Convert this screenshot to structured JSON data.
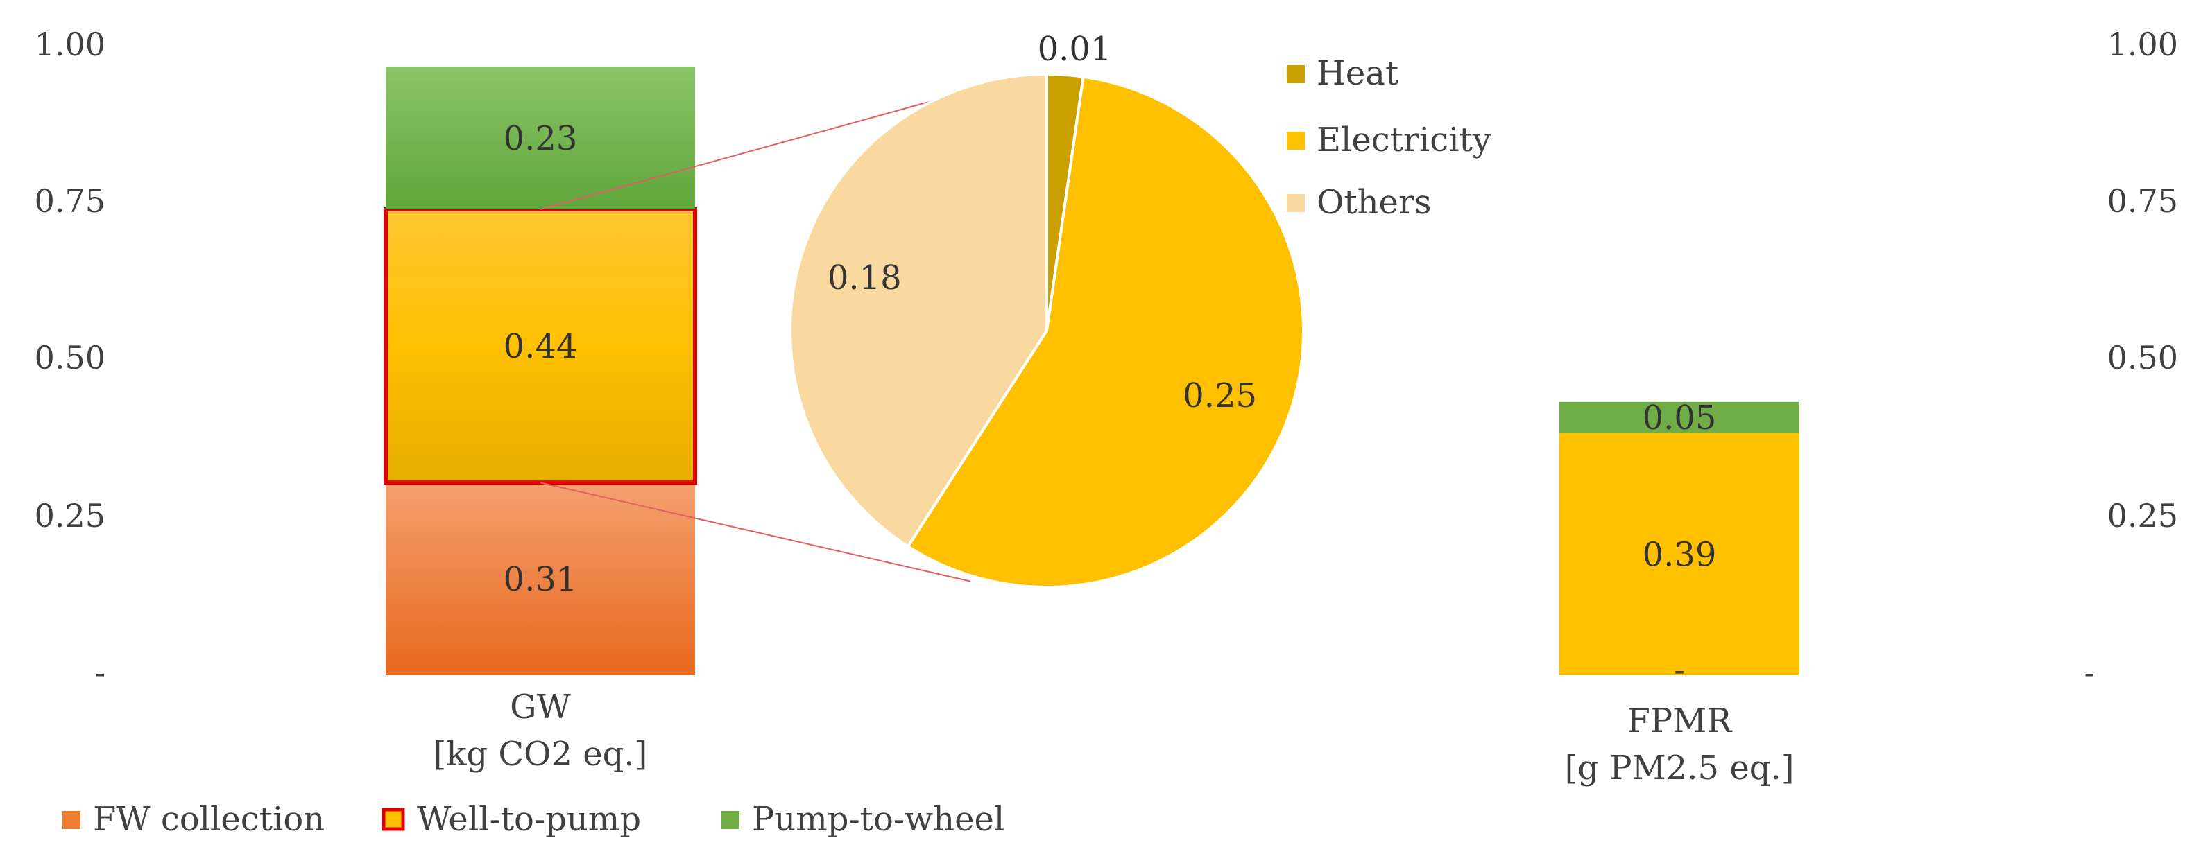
{
  "chart_data": {
    "type": "bar",
    "stacked": true,
    "ylim": [
      0,
      1
    ],
    "y_ticks": [
      {
        "value": 0,
        "label": "-"
      },
      {
        "value": 0.25,
        "label": "0.25"
      },
      {
        "value": 0.5,
        "label": "0.50"
      },
      {
        "value": 0.75,
        "label": "0.75"
      },
      {
        "value": 1.0,
        "label": "1.00"
      }
    ],
    "categories": [
      {
        "name": "GW",
        "unit": "[kg CO2 eq.]",
        "zero_tick": ""
      },
      {
        "name": "FPMR",
        "unit": "[g PM2.5 eq.]",
        "zero_tick": "-"
      }
    ],
    "series": [
      {
        "name": "FW collection",
        "color": "#ED7D31",
        "values": [
          0.31,
          0
        ],
        "labels": [
          "0.31",
          ""
        ]
      },
      {
        "name": "Well-to-pump",
        "color": "#FFC000",
        "highlight": "#E00000",
        "values": [
          0.44,
          0.39
        ],
        "labels": [
          "0.44",
          "0.39"
        ]
      },
      {
        "name": "Pump-to-wheel",
        "color": "#70AD47",
        "values": [
          0.23,
          0.05
        ],
        "labels": [
          "0.23",
          "0.05"
        ]
      }
    ],
    "inset_pie": {
      "breakdown_of": "Well-to-pump (GW)",
      "slices": [
        {
          "name": "Heat",
          "value": 0.01,
          "label": "0.01",
          "color": "#C9A000"
        },
        {
          "name": "Electricity",
          "value": 0.25,
          "label": "0.25",
          "color": "#FFC000"
        },
        {
          "name": "Others",
          "value": 0.18,
          "label": "0.18",
          "color": "#F9D9A0"
        }
      ]
    },
    "legend": [
      {
        "name": "FW collection",
        "color": "#ED7D31"
      },
      {
        "name": "Well-to-pump",
        "color": "#FFC000",
        "border": "#E00000"
      },
      {
        "name": "Pump-to-wheel",
        "color": "#70AD47"
      }
    ],
    "pie_legend": [
      {
        "name": "Heat",
        "color": "#C9A000"
      },
      {
        "name": "Electricity",
        "color": "#FFC000"
      },
      {
        "name": "Others",
        "color": "#F9D9A0"
      }
    ]
  }
}
